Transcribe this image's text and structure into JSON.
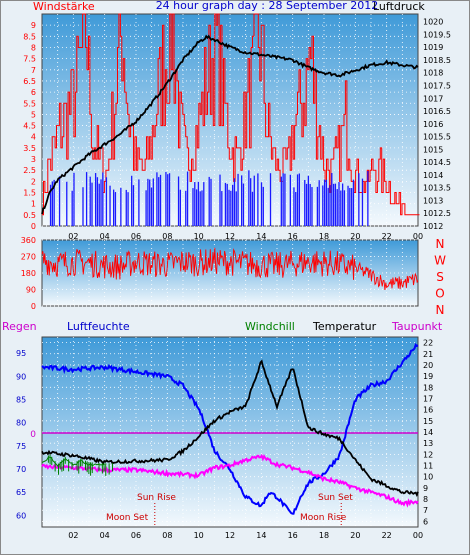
{
  "header": {
    "left": "Windstärke",
    "center": "24 hour graph day : 28 September 2012",
    "right": "Luftdruck"
  },
  "colors": {
    "frame_bg": "#e8f0f6",
    "plot_bg_top": "#3f9ad8",
    "plot_bg_bottom": "#f4f9fd",
    "wind": "#ff0000",
    "gust_blue": "#1a1aff",
    "pressure": "#000000",
    "humidity": "#0000ff",
    "windchill": "#008000",
    "temperature": "#000000",
    "dewpoint": "#ff00ff",
    "zero_line": "#cc00cc"
  },
  "chart_data": [
    {
      "type": "bar",
      "title": "24 hour graph day : 28 September 2012",
      "series": [
        {
          "name": "Windstärke",
          "axis": "left",
          "ylim": [
            0,
            9.5
          ],
          "values": [
            1,
            3,
            4,
            5,
            5.5,
            7,
            9.5,
            4,
            3,
            2.5,
            6,
            9.5,
            5,
            3,
            2.5,
            4,
            6,
            8,
            9.5,
            5,
            3,
            4,
            5.5,
            7,
            9,
            6,
            4,
            3,
            5,
            6.5,
            9.5,
            5,
            3,
            2.5,
            3,
            5,
            6,
            8,
            5.5,
            3,
            2.5,
            3.5,
            5,
            3,
            2,
            2,
            3,
            2.5,
            2,
            1,
            1,
            0.5,
            0.5
          ]
        },
        {
          "name": "Luftdruck",
          "axis": "right",
          "ylim": [
            1012,
            1020.3
          ],
          "x": [
            0,
            0.5,
            1,
            2,
            3,
            4,
            5,
            6,
            7,
            8,
            9,
            10,
            10.5,
            11,
            12,
            13,
            14,
            15,
            16,
            17,
            18,
            19,
            20,
            21,
            22,
            23,
            24
          ],
          "values": [
            1012.5,
            1013.3,
            1013.8,
            1014.3,
            1014.8,
            1015.2,
            1015.6,
            1016.1,
            1016.8,
            1017.6,
            1018.5,
            1019.2,
            1019.4,
            1019.3,
            1019.0,
            1018.8,
            1018.7,
            1018.6,
            1018.5,
            1018.2,
            1018.0,
            1017.9,
            1018.1,
            1018.3,
            1018.4,
            1018.3,
            1018.2
          ]
        }
      ],
      "left_ticks": [
        "0",
        "0.5",
        "1",
        "1.5",
        "2",
        "2.5",
        "3",
        "3.5",
        "4",
        "4.5",
        "5",
        "5.5",
        "6",
        "6.5",
        "7",
        "7.5",
        "8",
        "8.5",
        "9"
      ],
      "right_ticks": [
        "1012",
        "1012.5",
        "1013",
        "1013.5",
        "1014",
        "1014.5",
        "1015",
        "1015.5",
        "1016",
        "1016.5",
        "1017",
        "1017.5",
        "1018",
        "1018.5",
        "1019",
        "1019.5",
        "1020"
      ],
      "x_ticks": [
        "02",
        "04",
        "06",
        "08",
        "10",
        "12",
        "14",
        "16",
        "18",
        "20",
        "22",
        "00"
      ]
    },
    {
      "type": "line",
      "series": [
        {
          "name": "Windrichtung",
          "ylim": [
            0,
            360
          ],
          "x": [
            0,
            1,
            2,
            3,
            4,
            5,
            6,
            7,
            8,
            9,
            10,
            11,
            12,
            13,
            14,
            15,
            16,
            17,
            18,
            19,
            20,
            21,
            22,
            23,
            24
          ],
          "values": [
            250,
            230,
            240,
            235,
            220,
            215,
            240,
            230,
            225,
            240,
            235,
            245,
            240,
            230,
            225,
            220,
            230,
            240,
            235,
            225,
            205,
            170,
            120,
            125,
            150
          ]
        }
      ],
      "y_ticks": [
        "0",
        "90",
        "180",
        "270",
        "360"
      ],
      "right_labels": [
        "N",
        "W",
        "S",
        "O",
        "N"
      ]
    },
    {
      "type": "line",
      "series": [
        {
          "name": "Luftfeuchte",
          "axis": "left",
          "ylim": [
            57.5,
            98.5
          ],
          "x": [
            0,
            2,
            4,
            6,
            8,
            9,
            10,
            10.5,
            11,
            12,
            13,
            14,
            14.5,
            15,
            16,
            16.5,
            17,
            18,
            19,
            20,
            21,
            22,
            23,
            24
          ],
          "values": [
            92,
            91.5,
            92,
            91,
            90,
            88,
            83,
            79,
            74,
            70,
            64,
            62,
            65,
            64,
            60,
            64,
            67,
            69,
            73,
            85,
            88,
            89,
            93,
            97
          ]
        },
        {
          "name": "Windchill",
          "axis": "right",
          "ylim": [
            5.5,
            22.5
          ],
          "x": [
            0,
            0.5,
            1,
            1.5,
            2,
            2.5,
            3,
            4
          ],
          "values": [
            11.2,
            11.8,
            10.9,
            11.6,
            11.0,
            11.4,
            11.1,
            11.0
          ]
        },
        {
          "name": "Temperatur",
          "axis": "right",
          "ylim": [
            5.5,
            22.5
          ],
          "x": [
            0,
            2,
            4,
            6,
            8,
            9,
            10,
            11,
            12,
            13,
            14,
            15,
            16,
            17,
            18,
            19,
            20,
            21,
            22,
            23,
            24
          ],
          "values": [
            12.2,
            11.9,
            11.3,
            11.4,
            11.5,
            12.3,
            13.6,
            15.0,
            15.8,
            16.3,
            20.3,
            16.3,
            19.8,
            14.4,
            13.8,
            13.4,
            11.5,
            9.8,
            9.2,
            8.6,
            8.5
          ]
        },
        {
          "name": "Taupunkt",
          "axis": "right",
          "ylim": [
            5.5,
            22.5
          ],
          "x": [
            0,
            2,
            4,
            6,
            8,
            9,
            10,
            11,
            12,
            13,
            14,
            15,
            16,
            17,
            18,
            19,
            20,
            21,
            22,
            23,
            24
          ],
          "values": [
            10.9,
            10.8,
            10.6,
            10.6,
            10.3,
            10.2,
            10.1,
            10.8,
            11.0,
            11.5,
            11.8,
            11.1,
            10.8,
            10.4,
            9.8,
            9.5,
            9.0,
            8.6,
            8.2,
            7.6,
            7.8
          ]
        }
      ],
      "left_ticks": [
        "60",
        "65",
        "70",
        "75",
        "80",
        "85",
        "90",
        "95"
      ],
      "right_ticks": [
        "6",
        "7",
        "8",
        "9",
        "10",
        "11",
        "12",
        "13",
        "14",
        "15",
        "16",
        "17",
        "18",
        "19",
        "20",
        "21",
        "22"
      ],
      "zero_label": "0",
      "legend": {
        "regen": "Regen",
        "luftfeuchte": "Luftfeuchte",
        "windchill": "Windchill",
        "temperatur": "Temperatur",
        "taupunkt": "Taupunkt"
      },
      "annotations": {
        "sun_rise": "Sun Rise",
        "sun_set": "Sun Set",
        "moon_set": "Moon Set",
        "moon_rise": "Moon Rise"
      },
      "moon_set_x": 7.2,
      "moon_rise_x": 19.1
    }
  ]
}
